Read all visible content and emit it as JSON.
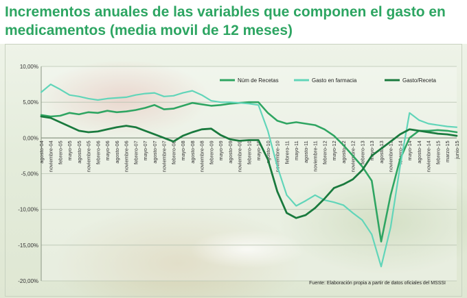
{
  "title": "Incrementos anuales de las variables que componen el gasto en medicamentos (media movil de 12 meses)",
  "source": "Fuente: Elaboración propia a partir de datos oficiales del MSSSI",
  "colors": {
    "recetas": "#2fa562",
    "gasto_farmacia": "#61d5b9",
    "gasto_receta": "#1a7a3e",
    "title": "#2da562"
  },
  "chart_data": {
    "type": "line",
    "title": "Incrementos anuales de las variables que componen el gasto en medicamentos (media movil de 12 meses)",
    "ylim": [
      -20,
      10
    ],
    "yticks": [
      10,
      5,
      0,
      -5,
      -10,
      -15,
      -20
    ],
    "ytick_labels": [
      "10,00%",
      "5,00%",
      "0,00%",
      "-5,00%",
      "-10,00%",
      "-15,00%",
      "-20,00%"
    ],
    "grid": true,
    "legend": "top-right",
    "x_labels": [
      "agosto-04",
      "noviembre-04",
      "febrero-05",
      "mayo-05",
      "agosto-05",
      "noviembre-05",
      "febrero-06",
      "mayo-06",
      "agosto-06",
      "noviembre-06",
      "febrero-07",
      "mayo-07",
      "agosto-07",
      "noviembre-07",
      "febrero-08",
      "mayo-08",
      "agosto-08",
      "noviembre-08",
      "febrero-09",
      "mayo-09",
      "agosto-09",
      "noviembre-09",
      "febrero-10",
      "mayo-10",
      "agosto-10",
      "noviembre-10",
      "febrero-11",
      "mayo-11",
      "agosto-11",
      "noviembre-11",
      "febrero-12",
      "mayo-12",
      "agosto-12",
      "noviembre-12",
      "febrero-13",
      "mayo-13",
      "agosto-13",
      "noviembre-13",
      "febrero-14",
      "mayo-14",
      "agosto-14",
      "noviembre-14",
      "febrero-15",
      "marzo-15",
      "junio-15"
    ],
    "series": [
      {
        "name": "Núm de Recetas",
        "values": [
          3.2,
          3.0,
          3.1,
          3.5,
          3.3,
          3.6,
          3.5,
          3.8,
          3.6,
          3.7,
          3.9,
          4.2,
          4.6,
          4.0,
          4.1,
          4.5,
          4.9,
          4.7,
          4.5,
          4.6,
          4.8,
          4.9,
          5.0,
          5.0,
          3.5,
          2.4,
          2.0,
          2.2,
          2.0,
          1.8,
          1.2,
          0.3,
          -1.0,
          -2.5,
          -4.0,
          -6.0,
          -14.5,
          -8.0,
          -3.0,
          0.0,
          1.0,
          1.0,
          1.1,
          1.0,
          0.8
        ]
      },
      {
        "name": "Gasto en farmacia",
        "values": [
          6.4,
          7.5,
          6.8,
          6.0,
          5.8,
          5.5,
          5.3,
          5.5,
          5.6,
          5.7,
          6.0,
          6.2,
          6.3,
          5.8,
          5.9,
          6.3,
          6.6,
          6.0,
          5.2,
          5.0,
          5.0,
          4.9,
          4.8,
          4.6,
          1.0,
          -4.0,
          -8.0,
          -9.5,
          -8.8,
          -8.0,
          -8.7,
          -9.0,
          -9.4,
          -10.5,
          -11.5,
          -13.5,
          -18.0,
          -12.5,
          -4.0,
          3.5,
          2.5,
          2.0,
          1.8,
          1.6,
          1.5
        ]
      },
      {
        "name": "Gasto/Receta",
        "values": [
          3.0,
          2.8,
          2.2,
          1.6,
          1.0,
          0.8,
          0.9,
          1.2,
          1.5,
          1.7,
          1.5,
          1.0,
          0.5,
          0.0,
          -0.5,
          0.3,
          0.8,
          1.2,
          1.3,
          0.4,
          -0.2,
          -0.4,
          -0.3,
          -0.3,
          -3.0,
          -7.5,
          -10.5,
          -11.2,
          -10.8,
          -9.8,
          -8.5,
          -7.0,
          -6.5,
          -5.8,
          -4.5,
          -2.5,
          -1.5,
          -0.5,
          0.5,
          1.2,
          1.0,
          0.8,
          0.6,
          0.5,
          0.3
        ]
      }
    ]
  }
}
